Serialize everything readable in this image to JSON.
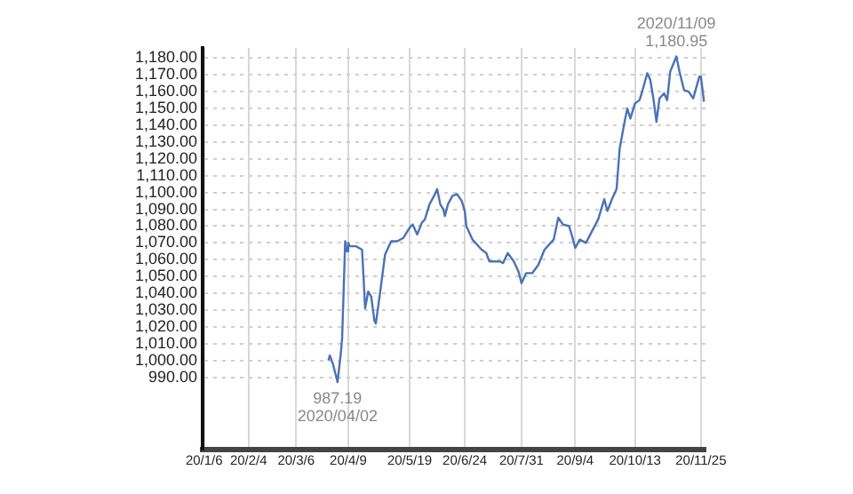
{
  "chart_data": {
    "type": "line",
    "x": [
      "2020-03-27",
      "2020-03-28",
      "2020-03-30",
      "2020-04-02",
      "2020-04-04",
      "2020-04-05",
      "2020-04-07",
      "2020-04-08",
      "2020-04-09",
      "2020-04-10",
      "2020-04-14",
      "2020-04-18",
      "2020-04-19",
      "2020-04-20",
      "2020-04-22",
      "2020-04-24",
      "2020-04-26",
      "2020-04-27",
      "2020-04-30",
      "2020-05-03",
      "2020-05-07",
      "2020-05-11",
      "2020-05-15",
      "2020-05-19",
      "2020-05-21",
      "2020-05-24",
      "2020-05-27",
      "2020-05-29",
      "2020-06-01",
      "2020-06-04",
      "2020-06-06",
      "2020-06-08",
      "2020-06-10",
      "2020-06-11",
      "2020-06-13",
      "2020-06-16",
      "2020-06-19",
      "2020-06-22",
      "2020-06-24",
      "2020-06-25",
      "2020-06-29",
      "2020-07-05",
      "2020-07-08",
      "2020-07-10",
      "2020-07-13",
      "2020-07-17",
      "2020-07-19",
      "2020-07-22",
      "2020-07-26",
      "2020-07-29",
      "2020-07-31",
      "2020-08-03",
      "2020-08-07",
      "2020-08-11",
      "2020-08-15",
      "2020-08-19",
      "2020-08-21",
      "2020-08-24",
      "2020-08-27",
      "2020-08-31",
      "2020-09-02",
      "2020-09-04",
      "2020-09-07",
      "2020-09-11",
      "2020-09-15",
      "2020-09-19",
      "2020-09-23",
      "2020-09-25",
      "2020-09-28",
      "2020-10-01",
      "2020-10-03",
      "2020-10-06",
      "2020-10-08",
      "2020-10-10",
      "2020-10-13",
      "2020-10-16",
      "2020-10-18",
      "2020-10-21",
      "2020-10-23",
      "2020-10-25",
      "2020-10-27",
      "2020-10-29",
      "2020-11-01",
      "2020-11-03",
      "2020-11-05",
      "2020-11-09",
      "2020-11-11",
      "2020-11-14",
      "2020-11-17",
      "2020-11-20",
      "2020-11-24",
      "2020-11-25",
      "2020-11-27"
    ],
    "series": [
      {
        "color": "#4a72b8",
        "values": [
          1000,
          1003,
          998,
          987.19,
          1003,
          1013,
          1071,
          1065,
          1070,
          1068,
          1068,
          1066,
          1049,
          1031,
          1041,
          1038,
          1024,
          1022,
          1042,
          1063,
          1071,
          1071,
          1073,
          1079,
          1081,
          1075,
          1082,
          1084,
          1093,
          1098,
          1102,
          1093,
          1090,
          1086,
          1093,
          1098,
          1099,
          1095,
          1089,
          1080,
          1072,
          1066,
          1064,
          1059,
          1059,
          1059,
          1058,
          1064,
          1059,
          1053,
          1046,
          1052,
          1052,
          1057,
          1066,
          1070,
          1072,
          1085,
          1081,
          1080,
          1074,
          1067,
          1072,
          1070,
          1077,
          1084,
          1096,
          1089,
          1096,
          1102,
          1126,
          1141,
          1150,
          1144,
          1153,
          1155,
          1161,
          1171,
          1167,
          1156,
          1142,
          1156,
          1159,
          1155,
          1172,
          1180.95,
          1172,
          1161,
          1160,
          1156,
          1169,
          1169,
          1154
        ]
      }
    ],
    "xlim": [
      "2020-01-05",
      "2020-11-28"
    ],
    "xticks": [
      {
        "value": "2020-01-06",
        "label": "20/1/6"
      },
      {
        "value": "2020-02-04",
        "label": "20/2/4"
      },
      {
        "value": "2020-03-06",
        "label": "20/3/6"
      },
      {
        "value": "2020-04-09",
        "label": "20/4/9"
      },
      {
        "value": "2020-05-19",
        "label": "20/5/19"
      },
      {
        "value": "2020-06-24",
        "label": "20/6/24"
      },
      {
        "value": "2020-07-31",
        "label": "20/7/31"
      },
      {
        "value": "2020-09-04",
        "label": "20/9/4"
      },
      {
        "value": "2020-10-13",
        "label": "20/10/13"
      },
      {
        "value": "2020-11-25",
        "label": "20/11/25"
      }
    ],
    "ylim": [
      947,
      1186
    ],
    "yticks": [
      {
        "value": 990,
        "label": "990.00"
      },
      {
        "value": 1000,
        "label": "1,000.00"
      },
      {
        "value": 1010,
        "label": "1,010.00"
      },
      {
        "value": 1020,
        "label": "1,020.00"
      },
      {
        "value": 1030,
        "label": "1,030.00"
      },
      {
        "value": 1040,
        "label": "1,040.00"
      },
      {
        "value": 1050,
        "label": "1,050.00"
      },
      {
        "value": 1060,
        "label": "1,060.00"
      },
      {
        "value": 1070,
        "label": "1,070.00"
      },
      {
        "value": 1080,
        "label": "1,080.00"
      },
      {
        "value": 1090,
        "label": "1,090.00"
      },
      {
        "value": 1100,
        "label": "1,100.00"
      },
      {
        "value": 1110,
        "label": "1,110.00"
      },
      {
        "value": 1120,
        "label": "1,120.00"
      },
      {
        "value": 1130,
        "label": "1,130.00"
      },
      {
        "value": 1140,
        "label": "1,140.00"
      },
      {
        "value": 1150,
        "label": "1,150.00"
      },
      {
        "value": 1160,
        "label": "1,160.00"
      },
      {
        "value": 1170,
        "label": "1,170.00"
      },
      {
        "value": 1180,
        "label": "1,180.00"
      }
    ],
    "annotations": [
      {
        "text": "987.19\n2020/04/02",
        "x": "2020-04-02",
        "y": 987.19
      },
      {
        "text": "2020/11/09\n1,180.95",
        "x": "2020-11-09",
        "y": 1180.95
      }
    ],
    "grid": true,
    "legend": false,
    "marker": "none",
    "line_style": "solid"
  }
}
